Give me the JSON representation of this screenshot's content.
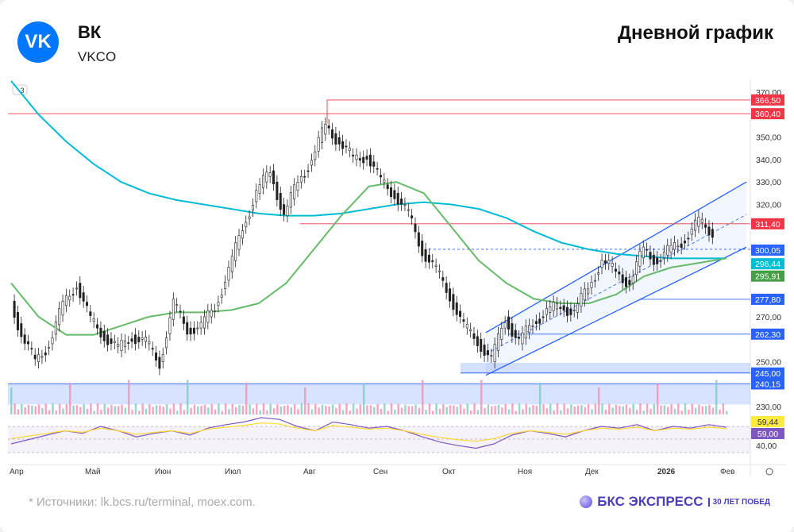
{
  "header": {
    "company": "ВК",
    "ticker": "VKCO",
    "title": "Дневной график",
    "logo_text": "VK"
  },
  "footer": {
    "source": "*  Источники: lk.bcs.ru/terminal, moex.com.",
    "brand": "БКС ЭКСПРЕСС",
    "brand_badge": "30 ЛЕТ ПОБЕД"
  },
  "chart_data": {
    "type": "candlestick",
    "ylim": [
      226,
      372
    ],
    "y_ticks": [
      "370,00",
      "350,00",
      "340,00",
      "330,00",
      "320,00",
      "270,00",
      "250,00",
      "230,00"
    ],
    "y_tick_values": [
      370,
      350,
      340,
      330,
      320,
      270,
      250,
      230
    ],
    "x_labels": [
      "Апр",
      "Май",
      "Июн",
      "Июл",
      "Авг",
      "Сен",
      "Окт",
      "Ноя",
      "Дек",
      "2026",
      "Фев"
    ],
    "closes": [
      282,
      262,
      250,
      258,
      275,
      285,
      268,
      262,
      255,
      262,
      258,
      250,
      275,
      265,
      265,
      275,
      290,
      310,
      325,
      335,
      315,
      330,
      340,
      355,
      348,
      340,
      342,
      330,
      325,
      315,
      300,
      290,
      280,
      265,
      260,
      250,
      270,
      258,
      268,
      272,
      275,
      272,
      283,
      295,
      290,
      285,
      300,
      295,
      300,
      305,
      312,
      308
    ],
    "ma_long": [
      375,
      360,
      348,
      338,
      330,
      325,
      322,
      320,
      318,
      316,
      315,
      315,
      316,
      318,
      320,
      321,
      320,
      318,
      314,
      308,
      303,
      300,
      298,
      297,
      296,
      296,
      296
    ],
    "ma_short": [
      285,
      270,
      262,
      262,
      266,
      270,
      272,
      272,
      273,
      276,
      285,
      300,
      315,
      328,
      330,
      325,
      310,
      295,
      285,
      278,
      276,
      276,
      280,
      288,
      292,
      294,
      296
    ],
    "levels": [
      {
        "label": "366,50",
        "value": 366.5,
        "color": "#f23645"
      },
      {
        "label": "360,40",
        "value": 360.4,
        "color": "#f23645"
      },
      {
        "label": "311,40",
        "value": 311.4,
        "color": "#f23645"
      },
      {
        "label": "300,05",
        "value": 300.05,
        "color": "#2962ff"
      },
      {
        "label": "296,44",
        "value": 296.44,
        "color": "#00bcd4"
      },
      {
        "label": "295,91",
        "value": 295.91,
        "color": "#43a047"
      },
      {
        "label": "277,80",
        "value": 277.8,
        "color": "#2962ff"
      },
      {
        "label": "262,30",
        "value": 262.3,
        "color": "#2962ff"
      },
      {
        "label": "245,00",
        "value": 245,
        "color": "#2962ff"
      },
      {
        "label": "240,15",
        "value": 240.15,
        "color": "#2962ff"
      }
    ],
    "rsi": {
      "labels": [
        "59,44",
        "59,00",
        "40,00"
      ],
      "values": [
        40,
        45,
        50,
        55,
        52,
        60,
        55,
        48,
        52,
        55,
        50,
        58,
        62,
        65,
        70,
        68,
        60,
        55,
        65,
        62,
        58,
        60,
        55,
        48,
        42,
        38,
        35,
        40,
        50,
        55,
        52,
        48,
        55,
        60,
        58,
        62,
        55,
        60,
        58,
        62,
        59
      ]
    },
    "indicator_badge": "3"
  }
}
